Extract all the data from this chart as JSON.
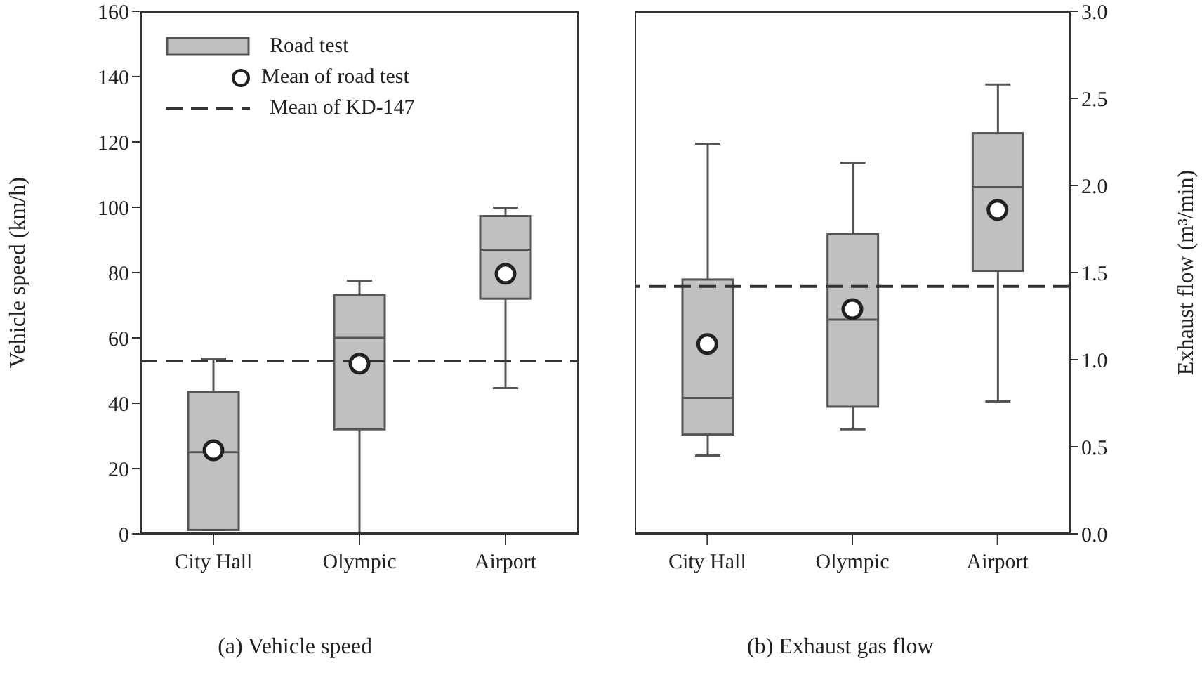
{
  "chart_data": [
    {
      "type": "box",
      "title": "(a) Vehicle speed",
      "ylabel": "Vehicle speed (km/h)",
      "categories": [
        "City Hall",
        "Olympic",
        "Airport"
      ],
      "ylim": [
        0,
        160
      ],
      "yticks": [
        0,
        20,
        40,
        60,
        80,
        100,
        120,
        140,
        160
      ],
      "legend": "top left",
      "grid": false,
      "series": [
        {
          "name": "Road test",
          "color": "#c0c0c0",
          "boxes": [
            {
              "low": 1.2,
              "q1": 1.2,
              "median": 25,
              "q3": 43.5,
              "high": 53.6
            },
            {
              "low": 0,
              "q1": 32,
              "median": 60,
              "q3": 73,
              "high": 77.5
            },
            {
              "low": 44.6,
              "q1": 72,
              "median": 87,
              "q3": 97.3,
              "high": 99.9
            }
          ]
        },
        {
          "name": "Mean of road test",
          "type": "scatter",
          "marker": "circle",
          "color": "#ffffff",
          "x": [
            "City Hall",
            "Olympic",
            "Airport"
          ],
          "values": [
            25.6,
            52.1,
            79.6
          ]
        }
      ],
      "ref_lines": [
        {
          "axis": "y",
          "value": 52.9,
          "label": "Mean of KD-147",
          "line_style": "dashed",
          "color": "#333333"
        }
      ]
    },
    {
      "type": "box",
      "title": "(b) Exhaust gas flow",
      "y2label": "Exhaust flow (m³/min)",
      "categories": [
        "City Hall",
        "Olympic",
        "Airport"
      ],
      "y2lim": [
        0,
        3
      ],
      "y2ticks": [
        {
          "value": 0,
          "label": "0.0"
        },
        0.5,
        {
          "value": 1,
          "label": "1.0"
        },
        1.5,
        {
          "value": 2,
          "label": "2.0"
        },
        2.5,
        {
          "value": 3,
          "label": "3.0"
        }
      ],
      "grid": false,
      "series": [
        {
          "axis": "y2",
          "color": "#c0c0c0",
          "boxes": [
            {
              "low": 0.45,
              "q1": 0.57,
              "median": 0.78,
              "q3": 1.46,
              "high": 2.24
            },
            {
              "low": 0.6,
              "q1": 0.73,
              "median": 1.23,
              "q3": 1.72,
              "high": 2.13
            },
            {
              "low": 0.76,
              "q1": 1.51,
              "median": 1.99,
              "q3": 2.3,
              "high": 2.58
            }
          ]
        },
        {
          "axis": "y2",
          "type": "scatter",
          "marker": "circle",
          "color": "#ffffff",
          "x": [
            "City Hall",
            "Olympic",
            "Airport"
          ],
          "values": [
            1.09,
            1.29,
            1.86
          ]
        }
      ],
      "ref_lines": [
        {
          "axis": "y2",
          "value": 1.42,
          "line_style": "dashed",
          "color": "#333333"
        }
      ]
    }
  ]
}
